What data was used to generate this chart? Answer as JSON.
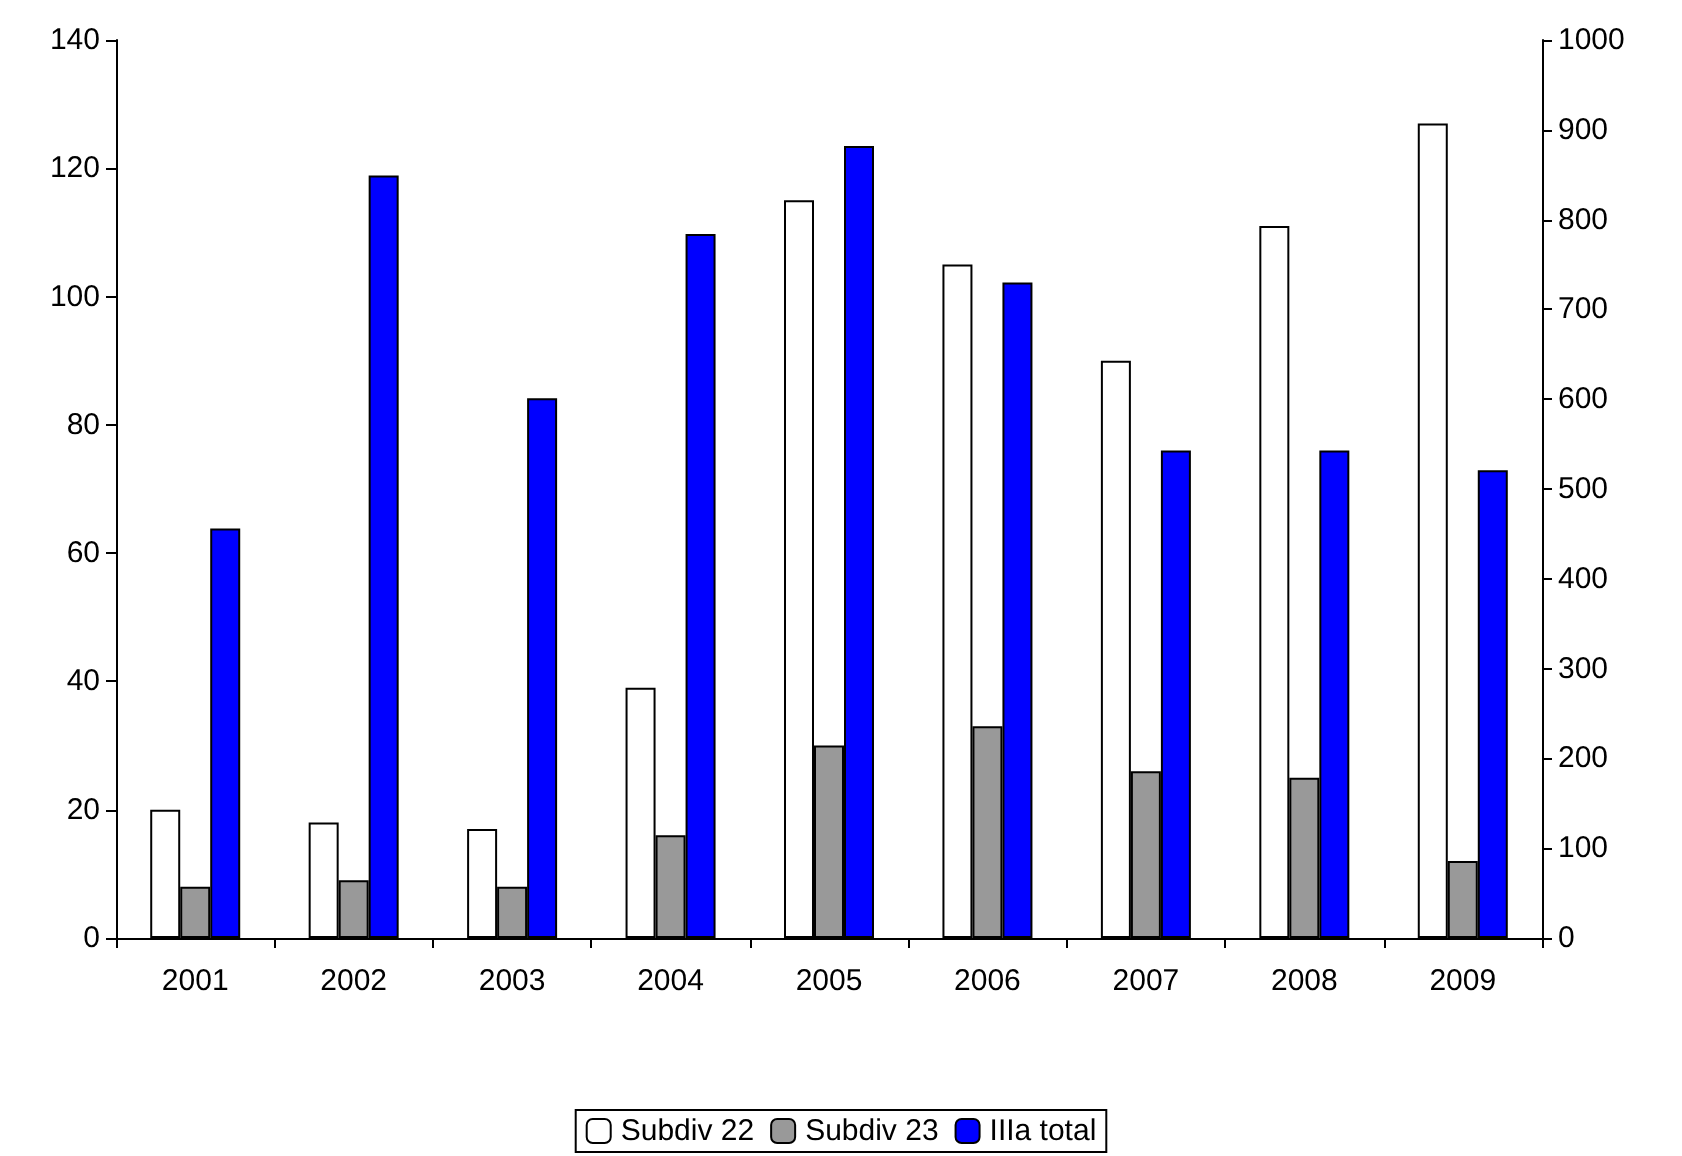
{
  "chart_data": {
    "type": "bar",
    "categories": [
      "2001",
      "2002",
      "2003",
      "2004",
      "2005",
      "2006",
      "2007",
      "2008",
      "2009"
    ],
    "series": [
      {
        "name": "Subdiv 22",
        "color": "#ffffff",
        "values": [
          20,
          18,
          17,
          39,
          115,
          105,
          90,
          111,
          127
        ]
      },
      {
        "name": "Subdiv 23",
        "color": "#999999",
        "values": [
          8,
          9,
          8,
          16,
          30,
          33,
          26,
          25,
          12
        ]
      },
      {
        "name": "IIIa total",
        "color": "#0000ff",
        "axis": "y2",
        "values": [
          456,
          849,
          601,
          784,
          882,
          730,
          543,
          543,
          521
        ]
      }
    ],
    "ylim": [
      0,
      140
    ],
    "yticks": [
      0,
      20,
      40,
      60,
      80,
      100,
      120,
      140
    ],
    "y2lim": [
      0,
      1000
    ],
    "y2ticks": [
      0,
      100,
      200,
      300,
      400,
      500,
      600,
      700,
      800,
      900,
      1000
    ],
    "grid": false,
    "legend": "bottom"
  }
}
